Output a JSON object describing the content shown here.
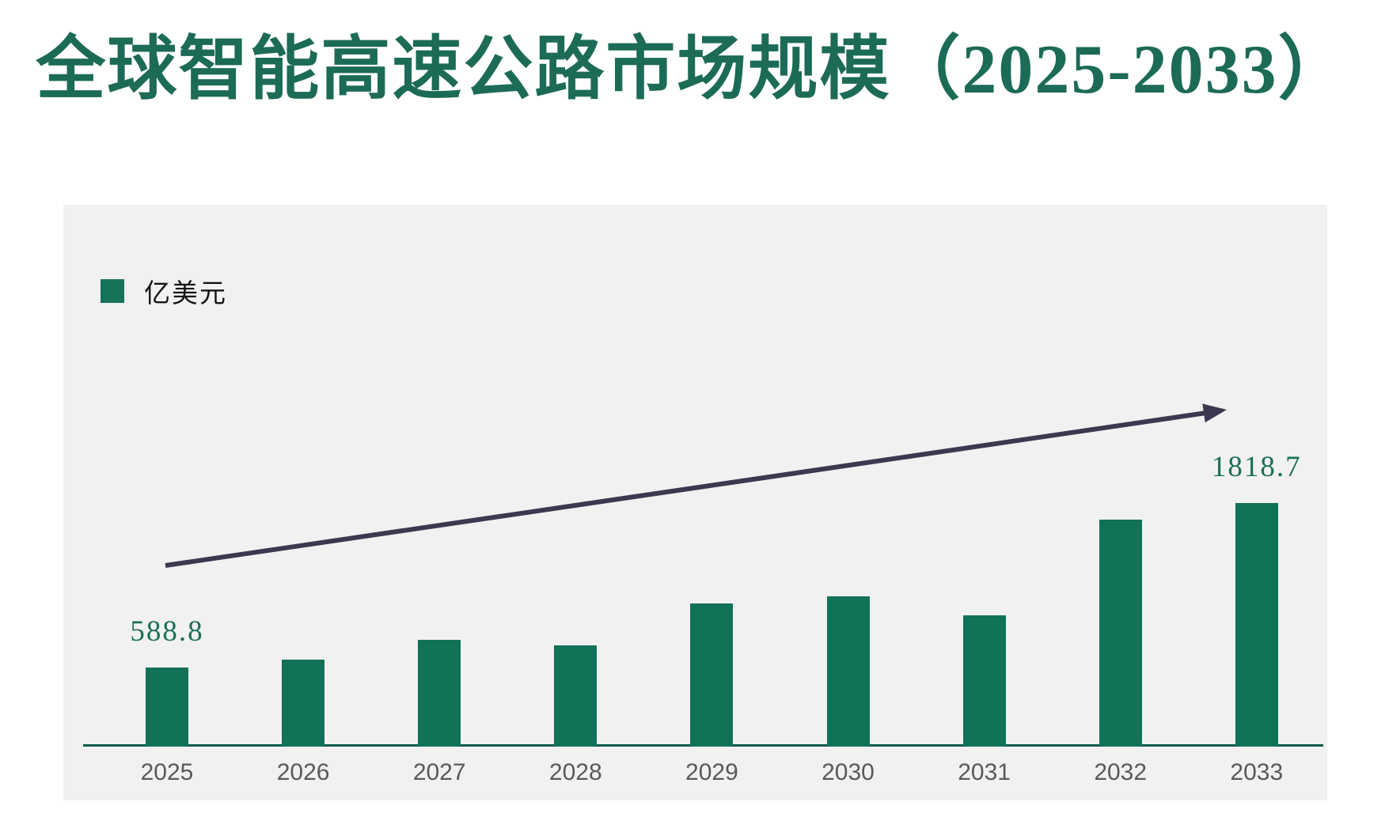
{
  "page": {
    "title": "全球智能高速公路市场规模（2025-2033）"
  },
  "legend": {
    "label": "亿美元"
  },
  "chart_data": {
    "type": "bar",
    "title": "全球智能高速公路市场规模（2025-2033）",
    "unit": "亿美元",
    "categories": [
      "2025",
      "2026",
      "2027",
      "2028",
      "2029",
      "2030",
      "2031",
      "2032",
      "2033"
    ],
    "values": [
      588.8,
      650,
      797,
      755,
      1068,
      1121,
      979,
      1693,
      1818.7
    ],
    "value_labels": [
      "588.8",
      "",
      "",
      "",
      "",
      "",
      "",
      "",
      "1818.7"
    ],
    "xlabel": "",
    "ylabel": "亿美元",
    "ylim": [
      0,
      2200
    ],
    "grid": false,
    "y_axis_visible": false,
    "legend_position": "top-left",
    "annotations": [
      {
        "type": "arrow",
        "description": "upward growth trend arrow from lower-left to upper-right"
      }
    ]
  },
  "colors": {
    "title": "#1C6B56",
    "bar": "#117258",
    "legend_swatch": "#16735A",
    "axis": "#0A5C4C",
    "arrow": "#3B3850",
    "value_label": "#1A6F58",
    "year_label": "#595959",
    "panel_bg": "#F1F1F1",
    "legend_text": "#141414",
    "page_bg": "#FFFFFF"
  }
}
